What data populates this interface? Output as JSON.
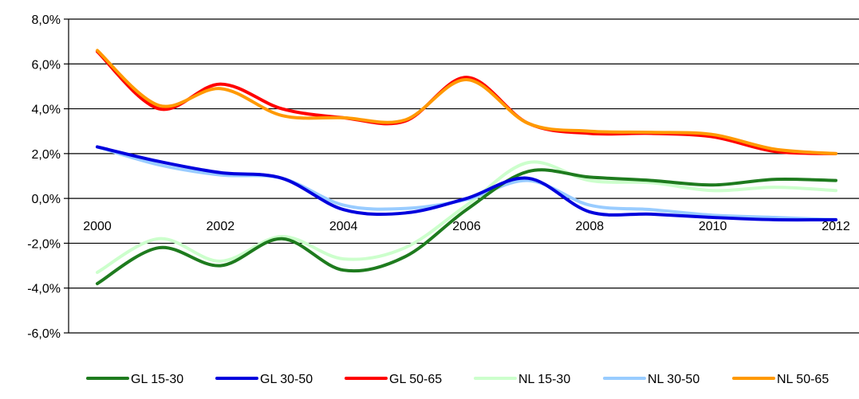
{
  "chart_data": {
    "type": "line",
    "title": "",
    "xlabel": "",
    "ylabel": "",
    "x": [
      2000,
      2001,
      2002,
      2003,
      2004,
      2005,
      2006,
      2007,
      2008,
      2009,
      2010,
      2011,
      2012
    ],
    "x_tick_labels": [
      "2000",
      "2002",
      "2004",
      "2006",
      "2008",
      "2010",
      "2012"
    ],
    "x_tick_values": [
      2000,
      2002,
      2004,
      2006,
      2008,
      2010,
      2012
    ],
    "y_tick_values": [
      8,
      6,
      4,
      2,
      0,
      -2,
      -4,
      -6
    ],
    "y_tick_labels": [
      "8,0%",
      "6,0%",
      "4,0%",
      "2,0%",
      "0,0%",
      "-2,0%",
      "-4,0%",
      "-6,0%"
    ],
    "ylim": [
      -6,
      8
    ],
    "grid": true,
    "legend_position": "bottom",
    "smooth": true,
    "series": [
      {
        "name": "GL 15-30",
        "color": "#1e7b1e",
        "values": [
          -3.8,
          -2.2,
          -3.0,
          -1.8,
          -3.2,
          -2.6,
          -0.5,
          1.2,
          0.95,
          0.8,
          0.6,
          0.85,
          0.8
        ]
      },
      {
        "name": "GL 30-50",
        "color": "#0000dd",
        "values": [
          2.3,
          1.65,
          1.15,
          0.9,
          -0.5,
          -0.65,
          0.0,
          0.9,
          -0.6,
          -0.7,
          -0.85,
          -0.95,
          -0.95
        ]
      },
      {
        "name": "GL 50-65",
        "color": "#ff0000",
        "values": [
          6.55,
          4.0,
          5.1,
          4.0,
          3.6,
          3.45,
          5.4,
          3.35,
          2.9,
          2.9,
          2.75,
          2.1,
          2.0
        ]
      },
      {
        "name": "NL 15-30",
        "color": "#ccffcc",
        "values": [
          -3.3,
          -1.8,
          -2.8,
          -1.7,
          -2.7,
          -2.2,
          -0.3,
          1.6,
          0.8,
          0.7,
          0.35,
          0.5,
          0.35
        ]
      },
      {
        "name": "NL 30-50",
        "color": "#99ccff",
        "values": [
          2.3,
          1.5,
          1.05,
          0.9,
          -0.3,
          -0.45,
          -0.05,
          0.8,
          -0.3,
          -0.5,
          -0.75,
          -0.85,
          -0.95
        ]
      },
      {
        "name": "NL 50-65",
        "color": "#ff9900",
        "values": [
          6.6,
          4.15,
          4.9,
          3.7,
          3.6,
          3.5,
          5.3,
          3.35,
          3.0,
          2.95,
          2.85,
          2.2,
          2.0
        ]
      }
    ]
  }
}
